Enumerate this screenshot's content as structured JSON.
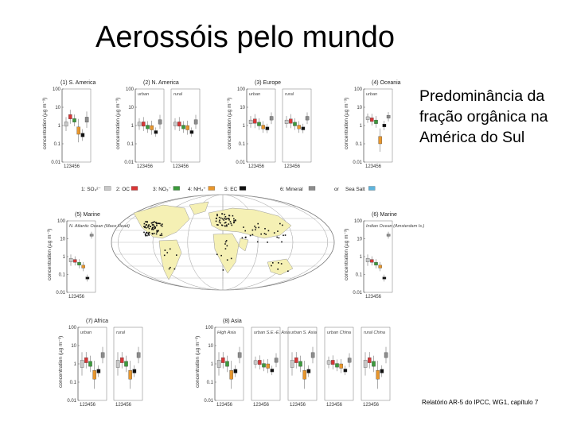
{
  "slide": {
    "title": "Aerossóis pelo mundo",
    "side_text": "Predominância da fração orgânica na América do Sul",
    "citation": "Relatório AR-5 do IPCC, WG1, capítulo 7"
  },
  "figure": {
    "ylabel": "concentration (µg m⁻³)",
    "ticks": [
      "100",
      "10",
      "1",
      "0.1",
      "0.01"
    ],
    "xticks": "123456",
    "legend": [
      {
        "label": "1: SO₄²⁻",
        "color": "#c8c8c8"
      },
      {
        "label": "2: OC",
        "color": "#d93636"
      },
      {
        "label": "3: NO₃⁻",
        "color": "#3c9a3c"
      },
      {
        "label": "4: NH₄⁺",
        "color": "#e8962c"
      },
      {
        "label": "5: EC",
        "color": "#111111"
      },
      {
        "label": "6: Mineral",
        "color": "#8c8c8c"
      },
      {
        "label": "or",
        "color": ""
      },
      {
        "label": "Sea Salt",
        "color": "#5fb4dc"
      }
    ],
    "panels": [
      {
        "id": "s-america",
        "title": "(1) S. America",
        "sub": [
          ""
        ]
      },
      {
        "id": "n-america",
        "title": "(2) N. America",
        "sub": [
          "urban",
          "rural"
        ]
      },
      {
        "id": "europe",
        "title": "(3) Europe",
        "sub": [
          "urban",
          "rural"
        ]
      },
      {
        "id": "oceania",
        "title": "(4) Oceania",
        "sub": [
          "urban"
        ]
      },
      {
        "id": "marine-atl",
        "title": "(5) Marine",
        "sub": [
          "N. Atlantic Ocean (Mace Head)"
        ]
      },
      {
        "id": "marine-ind",
        "title": "(6) Marine",
        "sub": [
          "Indian Ocean (Amsterdam Is.)"
        ]
      },
      {
        "id": "africa",
        "title": "(7) Africa",
        "sub": [
          "urban",
          "rural"
        ]
      },
      {
        "id": "asia",
        "title": "(8) Asia",
        "sub": [
          "High Asia",
          "urban S.E.-E. Asia",
          "urban S. Asia",
          "urban China",
          "rural China"
        ]
      }
    ]
  },
  "colors": {
    "so4": "#c8c8c8",
    "oc": "#d93636",
    "no3": "#3c9a3c",
    "nh4": "#e8962c",
    "ec": "#111111",
    "mineral": "#8c8c8c",
    "seasalt": "#5fb4dc",
    "land": "#f5f0b4",
    "ocean": "#ffffff",
    "site": "#111111"
  }
}
